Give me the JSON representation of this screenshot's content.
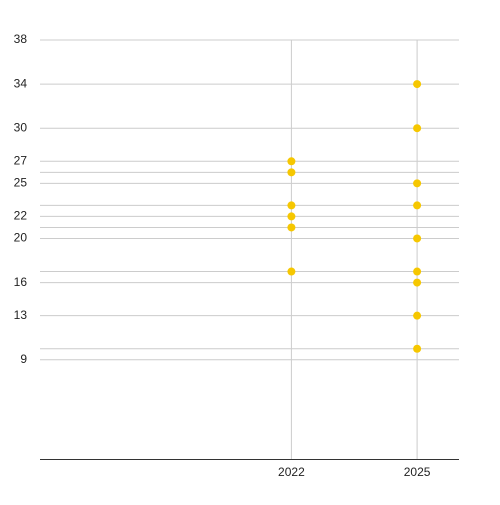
{
  "chart_data": {
    "type": "scatter",
    "x": [
      2022,
      2022,
      2022,
      2022,
      2022,
      2022,
      2025,
      2025,
      2025,
      2025,
      2025,
      2025,
      2025,
      2025,
      2025
    ],
    "series": [
      {
        "color": "#f6c700",
        "values": [
          27,
          26,
          23,
          22,
          21,
          17,
          34,
          30,
          25,
          23,
          20,
          17,
          16,
          13,
          10
        ]
      }
    ],
    "xlim": [
      2016,
      2026
    ],
    "xticks": [
      2022,
      2025
    ],
    "ylim": [
      0,
      38
    ],
    "yticks": [
      38,
      34,
      30,
      27,
      25,
      22,
      20,
      16,
      13,
      9
    ],
    "ygrid": [
      26,
      23,
      21,
      17,
      10
    ],
    "grid": true
  }
}
